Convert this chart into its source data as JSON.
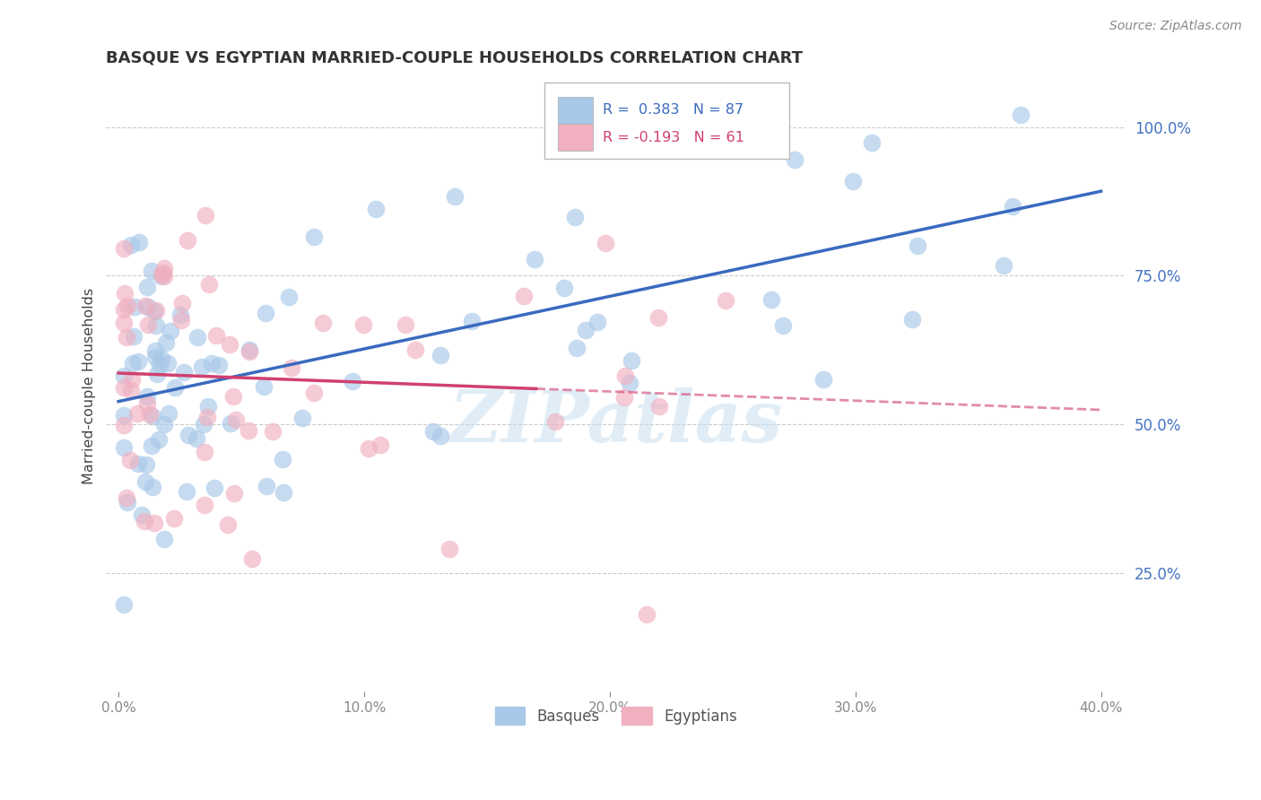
{
  "title": "BASQUE VS EGYPTIAN MARRIED-COUPLE HOUSEHOLDS CORRELATION CHART",
  "source": "Source: ZipAtlas.com",
  "ylabel": "Married-couple Households",
  "x_tick_labels": [
    "0.0%",
    "10.0%",
    "20.0%",
    "30.0%",
    "40.0%"
  ],
  "x_tick_positions": [
    0.0,
    10.0,
    20.0,
    30.0,
    40.0
  ],
  "y_tick_labels": [
    "100.0%",
    "75.0%",
    "50.0%",
    "25.0%"
  ],
  "y_tick_positions": [
    100.0,
    75.0,
    50.0,
    25.0
  ],
  "xlim": [
    -0.5,
    41.0
  ],
  "ylim": [
    5.0,
    108.0
  ],
  "blue_color": "#a8c8e8",
  "pink_color": "#f0b0c0",
  "blue_line_color": "#3a6abf",
  "pink_line_color": "#d04070",
  "watermark": "ZIPatlas",
  "legend_r_blue": "R =  0.383",
  "legend_n_blue": "N = 87",
  "legend_r_pink": "R = -0.193",
  "legend_n_pink": "N = 61",
  "label_basques": "Basques",
  "label_egyptians": "Egyptians"
}
